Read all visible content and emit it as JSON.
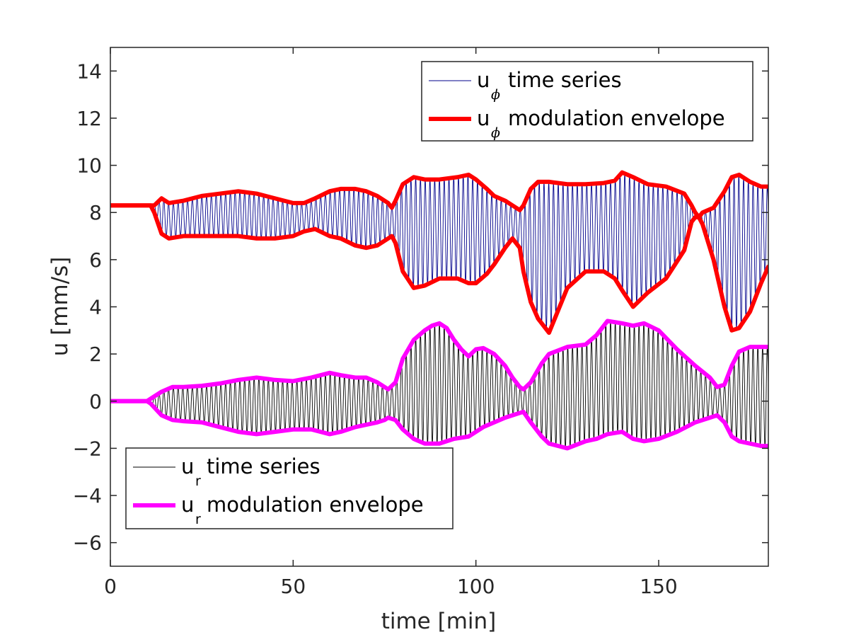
{
  "chart_data": {
    "type": "line",
    "title": "",
    "xlabel": "time [min]",
    "ylabel": "u [mm/s]",
    "xlim": [
      0,
      180
    ],
    "ylim": [
      -7,
      15
    ],
    "xticks": [
      0,
      50,
      100,
      150
    ],
    "xtick_labels": [
      "0",
      "50",
      "100",
      "150"
    ],
    "yticks": [
      -6,
      -4,
      -2,
      0,
      2,
      4,
      6,
      8,
      10,
      12,
      14
    ],
    "ytick_labels": [
      "−6",
      "−4",
      "−2",
      "0",
      "2",
      "4",
      "6",
      "8",
      "10",
      "12",
      "14"
    ],
    "grid": false,
    "colors": {
      "u_phi_series": "#00008b",
      "u_phi_envelope": "#ff0000",
      "u_r_series": "#000000",
      "u_r_envelope": "#ff00ff",
      "axes": "#262626"
    },
    "legends": [
      {
        "placement": "top-right",
        "entries": [
          {
            "base": "u",
            "sub": "ϕ",
            "text": "time series",
            "series": "u_phi_series"
          },
          {
            "base": "u",
            "sub": "ϕ",
            "text": "modulation envelope",
            "series": "u_phi_envelope"
          }
        ]
      },
      {
        "placement": "bottom-left",
        "entries": [
          {
            "base": "u",
            "sub": "r",
            "text": "time series",
            "series": "u_r_series"
          },
          {
            "base": "u",
            "sub": "r",
            "text": "modulation envelope",
            "series": "u_r_envelope"
          }
        ]
      }
    ],
    "oscillation_period_min": 1.3,
    "series": [
      {
        "name": "u_phi_upper_envelope",
        "x": [
          0,
          11,
          12,
          14,
          16,
          20,
          25,
          30,
          35,
          40,
          45,
          50,
          53,
          56,
          60,
          63,
          67,
          70,
          73,
          76,
          77,
          78,
          80,
          83,
          86,
          90,
          95,
          98,
          100,
          103,
          105,
          108,
          110,
          112,
          113,
          115,
          117,
          120,
          125,
          130,
          135,
          138,
          140,
          143,
          147,
          152,
          157,
          159,
          160,
          161,
          162,
          165,
          168,
          170,
          172,
          175,
          178,
          180
        ],
        "y": [
          8.3,
          8.3,
          8.3,
          8.6,
          8.4,
          8.5,
          8.7,
          8.8,
          8.9,
          8.8,
          8.6,
          8.4,
          8.4,
          8.6,
          8.9,
          9.0,
          9.0,
          8.9,
          8.7,
          8.4,
          8.2,
          8.5,
          9.2,
          9.5,
          9.4,
          9.4,
          9.5,
          9.6,
          9.4,
          9.0,
          8.7,
          8.5,
          8.3,
          8.1,
          8.3,
          9.0,
          9.3,
          9.3,
          9.2,
          9.2,
          9.25,
          9.35,
          9.7,
          9.5,
          9.2,
          9.1,
          8.8,
          8.3,
          8.0,
          7.8,
          8.0,
          8.2,
          8.9,
          9.5,
          9.6,
          9.3,
          9.1,
          9.1
        ]
      },
      {
        "name": "u_phi_lower_envelope",
        "x": [
          0,
          11,
          12,
          14,
          16,
          20,
          25,
          30,
          35,
          40,
          45,
          50,
          53,
          56,
          60,
          63,
          67,
          70,
          73,
          76,
          77,
          78,
          80,
          83,
          86,
          90,
          95,
          98,
          100,
          103,
          105,
          108,
          110,
          112,
          113,
          115,
          117,
          120,
          125,
          130,
          135,
          138,
          140,
          143,
          147,
          152,
          157,
          159,
          160,
          161,
          162,
          165,
          168,
          170,
          172,
          175,
          178,
          180
        ],
        "y": [
          8.3,
          8.3,
          8.0,
          7.1,
          6.9,
          7.0,
          7.0,
          7.0,
          7.0,
          6.9,
          6.9,
          7.0,
          7.2,
          7.3,
          7.0,
          6.9,
          6.6,
          6.5,
          6.6,
          6.9,
          7.0,
          6.7,
          5.5,
          4.8,
          4.9,
          5.2,
          5.2,
          5.0,
          5.0,
          5.4,
          5.8,
          6.5,
          6.9,
          6.5,
          5.5,
          4.2,
          3.5,
          2.9,
          4.8,
          5.5,
          5.5,
          5.2,
          4.7,
          4.0,
          4.6,
          5.2,
          6.4,
          7.6,
          7.8,
          7.8,
          7.5,
          6.0,
          4.0,
          3.0,
          3.1,
          3.8,
          5.0,
          5.7
        ]
      },
      {
        "name": "u_r_upper_envelope",
        "x": [
          0,
          10,
          11,
          14,
          17,
          20,
          25,
          30,
          35,
          40,
          45,
          50,
          55,
          60,
          63,
          67,
          70,
          73,
          75,
          76,
          78,
          80,
          83,
          86,
          88,
          90,
          92,
          94,
          96,
          98,
          100,
          102,
          105,
          108,
          110,
          112,
          113,
          115,
          118,
          120,
          125,
          130,
          133,
          136,
          140,
          143,
          146,
          150,
          155,
          160,
          164,
          166,
          168,
          170,
          172,
          175,
          178,
          180
        ],
        "y": [
          0.0,
          0.0,
          0.1,
          0.4,
          0.6,
          0.6,
          0.65,
          0.75,
          0.9,
          1.0,
          0.9,
          0.85,
          1.0,
          1.2,
          1.1,
          1.0,
          1.0,
          0.8,
          0.6,
          0.5,
          0.8,
          1.8,
          2.6,
          3.0,
          3.2,
          3.3,
          3.1,
          2.6,
          2.2,
          1.9,
          2.2,
          2.25,
          2.0,
          1.5,
          1.0,
          0.6,
          0.5,
          0.8,
          1.6,
          2.0,
          2.3,
          2.4,
          2.8,
          3.4,
          3.3,
          3.2,
          3.3,
          3.0,
          2.2,
          1.5,
          1.0,
          0.6,
          0.7,
          1.5,
          2.1,
          2.3,
          2.3,
          2.3
        ]
      },
      {
        "name": "u_r_lower_envelope",
        "x": [
          0,
          10,
          11,
          14,
          17,
          20,
          25,
          30,
          35,
          40,
          45,
          50,
          55,
          60,
          63,
          67,
          70,
          73,
          75,
          76,
          78,
          80,
          83,
          86,
          88,
          90,
          92,
          94,
          96,
          98,
          100,
          102,
          105,
          108,
          110,
          112,
          113,
          115,
          118,
          120,
          125,
          130,
          133,
          136,
          140,
          143,
          146,
          150,
          155,
          160,
          164,
          166,
          168,
          170,
          172,
          175,
          178,
          180
        ],
        "y": [
          0.0,
          0.0,
          -0.1,
          -0.6,
          -0.8,
          -0.85,
          -0.9,
          -1.1,
          -1.3,
          -1.4,
          -1.3,
          -1.2,
          -1.2,
          -1.4,
          -1.3,
          -1.1,
          -1.0,
          -0.9,
          -0.8,
          -0.7,
          -0.8,
          -1.2,
          -1.6,
          -1.8,
          -1.8,
          -1.8,
          -1.7,
          -1.6,
          -1.55,
          -1.5,
          -1.3,
          -1.1,
          -0.9,
          -0.7,
          -0.6,
          -0.5,
          -0.45,
          -0.9,
          -1.5,
          -1.8,
          -2.0,
          -1.7,
          -1.6,
          -1.4,
          -1.3,
          -1.6,
          -1.7,
          -1.6,
          -1.3,
          -0.9,
          -0.7,
          -0.6,
          -0.9,
          -1.5,
          -1.7,
          -1.8,
          -1.9,
          -1.9
        ]
      }
    ]
  }
}
